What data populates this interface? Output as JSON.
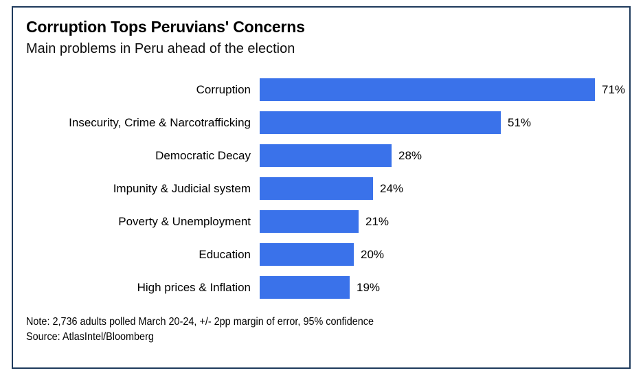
{
  "header": {
    "title": "Corruption Tops Peruvians' Concerns",
    "subtitle": "Main problems in Peru ahead of the election"
  },
  "chart_data": {
    "type": "bar",
    "orientation": "horizontal",
    "title": "Corruption Tops Peruvians' Concerns",
    "subtitle": "Main problems in Peru ahead of the election",
    "categories": [
      "Corruption",
      "Insecurity, Crime & Narcotrafficking",
      "Democratic Decay",
      "Impunity & Judicial system",
      "Poverty & Unemployment",
      "Education",
      "High prices & Inflation"
    ],
    "values": [
      71,
      51,
      28,
      24,
      21,
      20,
      19
    ],
    "value_labels": [
      "71%",
      "51%",
      "28%",
      "24%",
      "21%",
      "20%",
      "19%"
    ],
    "value_suffix": "%",
    "xlim": [
      0,
      71
    ],
    "grid": false,
    "legend": false,
    "xlabel": "",
    "ylabel": ""
  },
  "footer": {
    "note": "Note: 2,736 adults polled March 20-24, +/- 2pp margin of error, 95% confidence",
    "source": "Source: AtlasIntel/Bloomberg"
  },
  "colors": {
    "bar": "#3a72ea",
    "border": "#1e3a5c",
    "text": "#000000",
    "background": "#ffffff"
  }
}
